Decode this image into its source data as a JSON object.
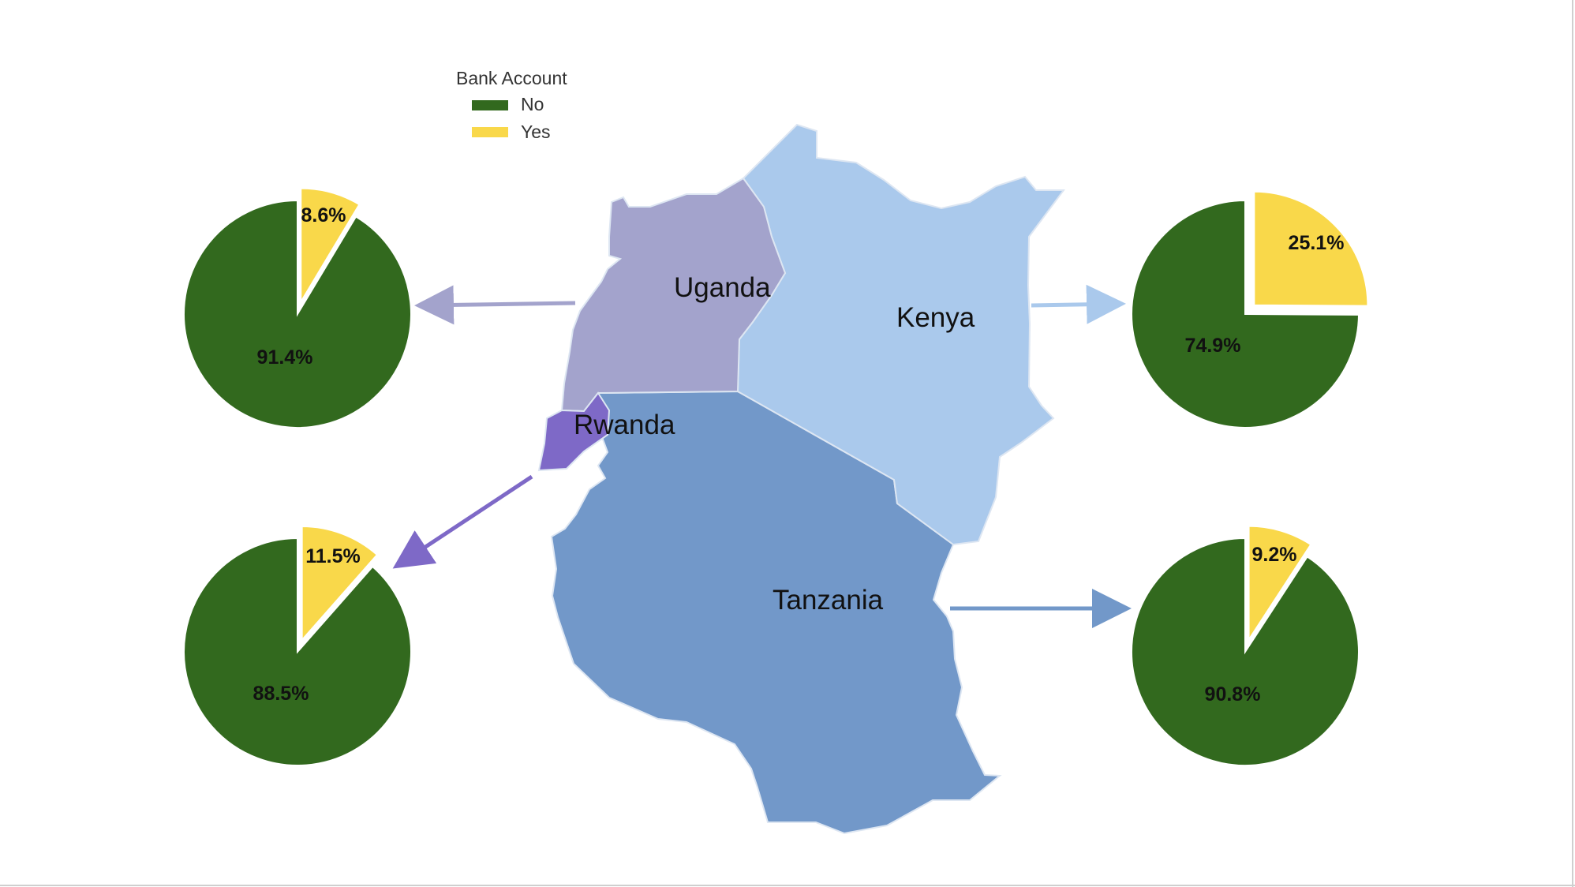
{
  "chart_data": {
    "type": "pie",
    "legend": {
      "title": "Bank Account",
      "placement": "top-left",
      "entries": [
        {
          "label": "No",
          "color": "#32691e"
        },
        {
          "label": "Yes",
          "color": "#f9d84a"
        }
      ]
    },
    "categories": [
      "No",
      "Yes"
    ],
    "pies": [
      {
        "country": "Uganda",
        "values": [
          91.4,
          8.6
        ],
        "labels": [
          "91.4%",
          "8.6%"
        ]
      },
      {
        "country": "Kenya",
        "values": [
          74.9,
          25.1
        ],
        "labels": [
          "74.9%",
          "25.1%"
        ]
      },
      {
        "country": "Rwanda",
        "values": [
          88.5,
          11.5
        ],
        "labels": [
          "88.5%",
          "11.5%"
        ]
      },
      {
        "country": "Tanzania",
        "values": [
          90.8,
          9.2
        ],
        "labels": [
          "90.8%",
          "9.2%"
        ]
      }
    ],
    "map": {
      "regions": [
        {
          "name": "Uganda",
          "color": "#a3a3cc"
        },
        {
          "name": "Kenya",
          "color": "#aac9ec"
        },
        {
          "name": "Rwanda",
          "color": "#7e69c7"
        },
        {
          "name": "Tanzania",
          "color": "#7298c9"
        }
      ]
    }
  }
}
